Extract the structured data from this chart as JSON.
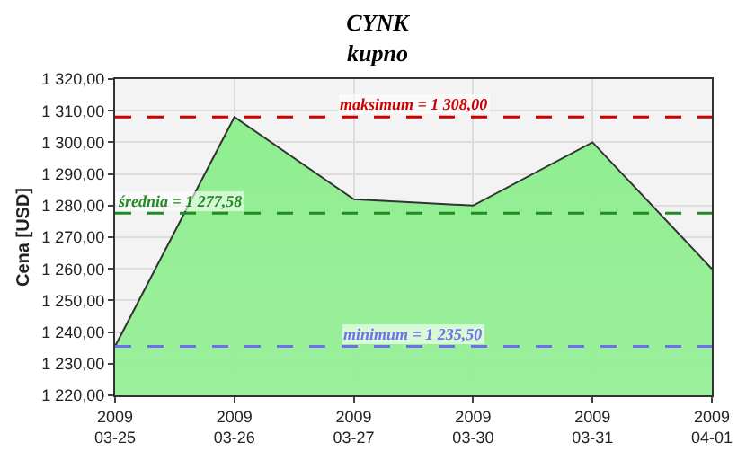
{
  "chart_data": {
    "type": "area",
    "title": "CYNK",
    "subtitle": "kupno",
    "ylabel": "Cena [USD]",
    "categories": [
      "2009\n03-25",
      "2009\n03-26",
      "2009\n03-27",
      "2009\n03-30",
      "2009\n03-31",
      "2009\n04-01"
    ],
    "series": [
      {
        "color": "#90ee90",
        "values": [
          1235.5,
          1308,
          1282,
          1280,
          1300,
          1260
        ]
      }
    ],
    "ylim": [
      1220,
      1320
    ],
    "yticks": [
      {
        "value": 1220,
        "label": "1 220,00"
      },
      {
        "value": 1230,
        "label": "1 230,00"
      },
      {
        "value": 1240,
        "label": "1 240,00"
      },
      {
        "value": 1250,
        "label": "1 250,00"
      },
      {
        "value": 1260,
        "label": "1 260,00"
      },
      {
        "value": 1270,
        "label": "1 270,00"
      },
      {
        "value": 1280,
        "label": "1 280,00"
      },
      {
        "value": 1290,
        "label": "1 290,00"
      },
      {
        "value": 1300,
        "label": "1 300,00"
      },
      {
        "value": 1310,
        "label": "1 310,00"
      },
      {
        "value": 1320,
        "label": "1 320,00"
      }
    ],
    "ref_lines": [
      {
        "axis": "y",
        "value": 1308,
        "label": "maksimum = 1 308,00",
        "color": "#cc0000",
        "line_style": "dashed"
      },
      {
        "axis": "y",
        "value": 1277.58,
        "label": "średnia = 1 277,58",
        "color": "#228b22",
        "line_style": "dashed"
      },
      {
        "axis": "y",
        "value": 1235.5,
        "label": "minimum = 1 235,50",
        "color": "#7070ee",
        "line_style": "dashed"
      }
    ],
    "grid": true
  }
}
